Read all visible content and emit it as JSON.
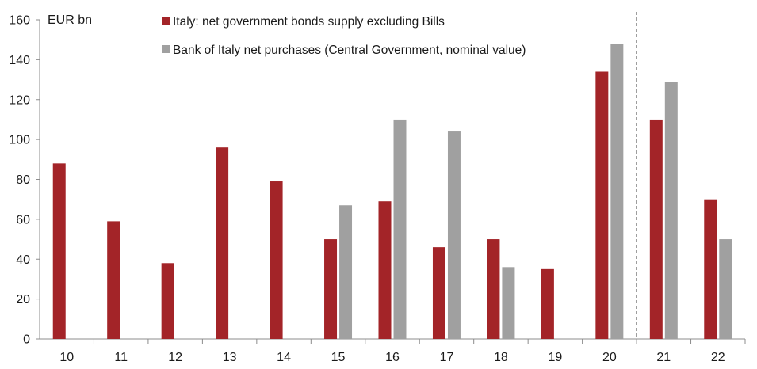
{
  "chart_data": {
    "type": "bar",
    "title": "",
    "unit_label": "EUR bn",
    "xlabel": "",
    "ylabel": "",
    "categories": [
      "10",
      "11",
      "12",
      "13",
      "14",
      "15",
      "16",
      "17",
      "18",
      "19",
      "20",
      "21",
      "22"
    ],
    "series": [
      {
        "name": "Italy: net government bonds supply excluding Bills",
        "color": "#a32428",
        "values": [
          88,
          59,
          38,
          96,
          79,
          50,
          69,
          46,
          50,
          35,
          134,
          110,
          70
        ]
      },
      {
        "name": "Bank of Italy net purchases (Central Government, nominal value)",
        "color": "#a0a0a0",
        "values": [
          null,
          null,
          null,
          null,
          null,
          67,
          110,
          104,
          36,
          null,
          148,
          129,
          50
        ]
      }
    ],
    "ylim": [
      0,
      160
    ],
    "yticks": [
      0,
      20,
      40,
      60,
      80,
      100,
      120,
      140,
      160
    ],
    "yticklabels": [
      "0",
      "20",
      "40",
      "60",
      "80",
      "100",
      "120",
      "140",
      "160"
    ],
    "grid": false,
    "legend_position": "top-left",
    "forecast_divider_between": [
      "20",
      "21"
    ]
  }
}
